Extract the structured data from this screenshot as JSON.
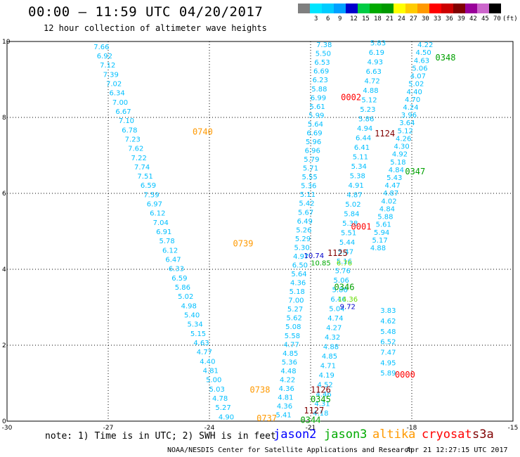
{
  "header": {
    "title": "00:00 – 11:59 UTC 04/20/2017",
    "subtitle": "12 hour collection of altimeter wave heights"
  },
  "color_scale": {
    "unit": "(ft)",
    "bins": [
      {
        "label": "",
        "color": "#7f7f7f"
      },
      {
        "label": "3",
        "color": "#00e5ff"
      },
      {
        "label": "6",
        "color": "#00ccff"
      },
      {
        "label": "9",
        "color": "#00a0ff"
      },
      {
        "label": "12",
        "color": "#0000cc"
      },
      {
        "label": "15",
        "color": "#00cc44"
      },
      {
        "label": "18",
        "color": "#00aa00"
      },
      {
        "label": "21",
        "color": "#009900"
      },
      {
        "label": "24",
        "color": "#ffff00"
      },
      {
        "label": "27",
        "color": "#ffcc00"
      },
      {
        "label": "30",
        "color": "#ff9900"
      },
      {
        "label": "33",
        "color": "#ff0000"
      },
      {
        "label": "36",
        "color": "#cc0000"
      },
      {
        "label": "39",
        "color": "#800000"
      },
      {
        "label": "42",
        "color": "#990099"
      },
      {
        "label": "45",
        "color": "#cc66cc"
      },
      {
        "label": "70",
        "color": "#000000"
      }
    ]
  },
  "map": {
    "lon_ticks": [
      "-30",
      "-27",
      "-24",
      "-21",
      "-18",
      "-15"
    ],
    "lat_ticks": [
      "0",
      "2",
      "4",
      "6",
      "8",
      "10"
    ],
    "lon_range": [
      -30,
      -15
    ],
    "lat_range": [
      0,
      10
    ],
    "grid": true,
    "tracks": [
      {
        "lon_start": -27.2,
        "lat_start": 9.8,
        "lon_end": -23.5,
        "lat_end": 0.05,
        "color": "#00bfff",
        "values": [
          "7.66",
          "6.92",
          "7.12",
          "7.39",
          "7.02",
          "6.34",
          "7.00",
          "6.67",
          "7.10",
          "6.78",
          "7.23",
          "7.62",
          "7.22",
          "7.74",
          "7.51",
          "6.59",
          "7.59",
          "6.97",
          "6.12",
          "7.04",
          "6.91",
          "5.78",
          "6.12",
          "6.47",
          "6.33",
          "6.59",
          "5.86",
          "5.02",
          "4.98",
          "5.40",
          "5.34",
          "5.15",
          "4.63",
          "4.77",
          "4.40",
          "4.81",
          "5.00",
          "5.03",
          "4.78",
          "5.27",
          "4.90"
        ]
      },
      {
        "lon_start": -20.6,
        "lat_start": 9.85,
        "lon_end": -21.8,
        "lat_end": 0.1,
        "color": "#00bfff",
        "values": [
          "7.38",
          "5.50",
          "6.53",
          "6.69",
          "6.23",
          "5.88",
          "6.99",
          "5.61",
          "5.99",
          "5.64",
          "6.69",
          "5.96",
          "6.96",
          "5.79",
          "5.71",
          "5.55",
          "5.36",
          "5.11",
          "5.42",
          "5.67",
          "6.49",
          "5.26",
          "5.29",
          "5.30",
          "4.97",
          "6.50",
          "5.64",
          "4.36",
          "5.18",
          "7.00",
          "5.27",
          "5.62",
          "5.08",
          "5.58",
          "4.77",
          "4.85",
          "5.36",
          "4.48",
          "4.22",
          "4.36",
          "4.81",
          "4.36",
          "5.41"
        ]
      },
      {
        "lon_start": -19.0,
        "lat_start": 9.9,
        "lon_end": -20.7,
        "lat_end": 0.15,
        "color": "#00bfff",
        "values": [
          "5.83",
          "6.19",
          "4.93",
          "6.63",
          "4.72",
          "4.88",
          "5.12",
          "5.23",
          "5.86",
          "4.94",
          "6.44",
          "6.41",
          "5.11",
          "5.34",
          "5.38",
          "4.91",
          "4.87",
          "5.02",
          "5.84",
          "5.38",
          "5.51",
          "5.44",
          "5.47",
          "5.16",
          "5.76",
          "5.06",
          "5.86",
          "6.46",
          "5.04",
          "4.74",
          "4.27",
          "4.32",
          "4.88",
          "4.85",
          "4.71",
          "4.19",
          "4.52",
          "4.46",
          "4.31",
          "4.18"
        ]
      },
      {
        "lon_start": -17.6,
        "lat_start": 9.85,
        "lon_end": -19.0,
        "lat_end": 4.5,
        "color": "#00bfff",
        "values": [
          "4.22",
          "4.50",
          "4.63",
          "5.06",
          "4.07",
          "5.02",
          "4.40",
          "4.70",
          "4.24",
          "3.96",
          "3.64",
          "5.12",
          "4.26",
          "4.30",
          "4.92",
          "5.18",
          "4.84",
          "5.43",
          "4.47",
          "4.87",
          "4.02",
          "4.84",
          "5.88",
          "5.61",
          "5.94",
          "5.17",
          "4.88"
        ]
      },
      {
        "lon_start": -18.7,
        "lat_start": 2.85,
        "lon_end": -18.7,
        "lat_end": 1.2,
        "color": "#00bfff",
        "values": [
          "3.83",
          "4.62",
          "5.48",
          "6.52",
          "7.47",
          "4.95",
          "5.89"
        ]
      }
    ],
    "extra_values": [
      {
        "text": "14.36",
        "lon": -19.9,
        "lat": 3.15,
        "color": "#66dd00"
      },
      {
        "text": "9.72",
        "lon": -19.9,
        "lat": 2.95,
        "color": "#0000cc"
      },
      {
        "text": "10.74",
        "lon": -20.9,
        "lat": 4.3,
        "color": "#0000cc"
      },
      {
        "text": "10.85",
        "lon": -20.7,
        "lat": 4.1,
        "color": "#00aa00"
      },
      {
        "text": "6.76",
        "lon": -20.0,
        "lat": 4.1,
        "color": "#66dd00"
      }
    ],
    "pass_labels": [
      {
        "text": "0348",
        "lon": -17.0,
        "lat": 9.5,
        "color": "#00a000"
      },
      {
        "text": "0002",
        "lon": -19.8,
        "lat": 8.45,
        "color": "#ff0000"
      },
      {
        "text": "1124",
        "lon": -18.8,
        "lat": 7.5,
        "color": "#800000"
      },
      {
        "text": "0740",
        "lon": -24.2,
        "lat": 7.55,
        "color": "#ff9900"
      },
      {
        "text": "0347",
        "lon": -17.9,
        "lat": 6.5,
        "color": "#00a000"
      },
      {
        "text": "0001",
        "lon": -19.5,
        "lat": 5.05,
        "color": "#ff0000"
      },
      {
        "text": "0739",
        "lon": -23.0,
        "lat": 4.6,
        "color": "#ff9900"
      },
      {
        "text": "1125",
        "lon": -20.2,
        "lat": 4.35,
        "color": "#800000"
      },
      {
        "text": "0346",
        "lon": -20.0,
        "lat": 3.45,
        "color": "#00a000"
      },
      {
        "text": "0000",
        "lon": -18.2,
        "lat": 1.15,
        "color": "#ff0000"
      },
      {
        "text": "1126",
        "lon": -20.7,
        "lat": 0.75,
        "color": "#800000"
      },
      {
        "text": "0738",
        "lon": -22.5,
        "lat": 0.75,
        "color": "#ff9900"
      },
      {
        "text": "0345",
        "lon": -20.7,
        "lat": 0.5,
        "color": "#00a000"
      },
      {
        "text": "1127",
        "lon": -20.9,
        "lat": 0.2,
        "color": "#800000"
      },
      {
        "text": "0737",
        "lon": -22.3,
        "lat": 0.0,
        "color": "#ff9900"
      },
      {
        "text": "0344",
        "lon": -21.0,
        "lat": -0.05,
        "color": "#00a000"
      }
    ]
  },
  "note": "note: 1) Time is in UTC; 2) SWH is in feet",
  "satellites": [
    {
      "name": "jason2",
      "color": "#0000ff"
    },
    {
      "name": "jason3",
      "color": "#00aa00"
    },
    {
      "name": "altika",
      "color": "#ff9900"
    },
    {
      "name": "cryosat",
      "color": "#ff0000"
    },
    {
      "name": "s3a",
      "color": "#800000"
    }
  ],
  "footer": "NOAA/NESDIS Center for Satellite Applications and Research",
  "timestamp": "Apr 21 12:27:15 UTC 2017"
}
